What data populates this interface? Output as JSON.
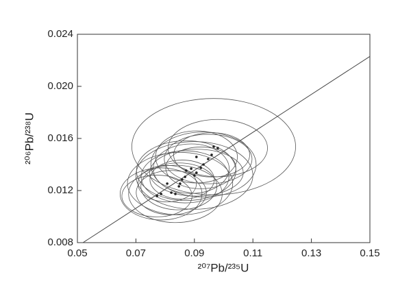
{
  "chart_data": {
    "type": "scatter",
    "x_label": "²⁰⁷Pb/²³⁵U",
    "y_label": "²⁰⁶Pb/²³⁸U",
    "xlim": [
      0.05,
      0.15
    ],
    "ylim": [
      0.008,
      0.024
    ],
    "xticks": [
      0.05,
      0.07,
      0.09,
      0.11,
      0.13,
      0.15
    ],
    "yticks": [
      0.008,
      0.012,
      0.016,
      {
        "value": 0.02,
        "label": "0.020"
      },
      0.024
    ],
    "color": "#222222",
    "ellipse_color": "#555555",
    "points": {
      "x": [
        0.0772,
        0.0786,
        0.0807,
        0.0821,
        0.0835,
        0.0847,
        0.0851,
        0.0858,
        0.0868,
        0.0872,
        0.0889,
        0.09,
        0.0907,
        0.0907,
        0.0922,
        0.0931,
        0.0947,
        0.0959,
        0.0966,
        0.098
      ],
      "y": [
        0.01158,
        0.01174,
        0.01253,
        0.01184,
        0.01174,
        0.01232,
        0.01253,
        0.01284,
        0.01305,
        0.01353,
        0.01368,
        0.01316,
        0.01458,
        0.01337,
        0.01374,
        0.014,
        0.01442,
        0.01474,
        0.01537,
        0.01526
      ],
      "rx": [
        0.012,
        0.014,
        0.01,
        0.012,
        0.016,
        0.013,
        0.018,
        0.011,
        0.015,
        0.017,
        0.013,
        0.02,
        0.014,
        0.016,
        0.012,
        0.018,
        0.015,
        0.013,
        0.028,
        0.017
      ],
      "ry": [
        0.0016,
        0.002,
        0.0014,
        0.0017,
        0.0022,
        0.0018,
        0.0024,
        0.0015,
        0.002,
        0.0023,
        0.0019,
        0.0026,
        0.002,
        0.0018,
        0.0016,
        0.0025,
        0.0019,
        0.0017,
        0.0037,
        0.0022
      ]
    },
    "line": {
      "x": [
        0.0519,
        0.15
      ],
      "y": [
        0.008,
        0.0223
      ]
    }
  }
}
